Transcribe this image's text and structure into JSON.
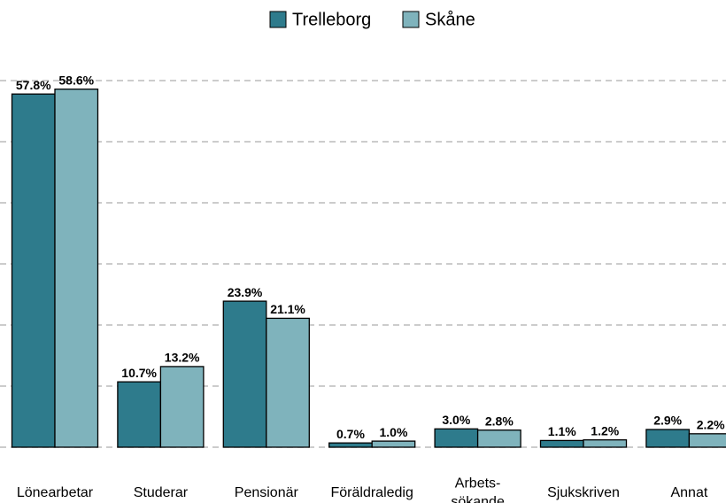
{
  "chart_data": {
    "type": "bar",
    "categories": [
      "Lönearbetar",
      "Studerar",
      "Pensionär",
      "Föräldraledig",
      "Arbets-\nsökande",
      "Sjukskriven",
      "Annat"
    ],
    "series": [
      {
        "name": "Trelleborg",
        "color": "#2e7b8c",
        "values": [
          57.8,
          10.7,
          23.9,
          0.7,
          3.0,
          1.1,
          2.9
        ],
        "value_labels": [
          "57.8%",
          "10.7%",
          "23.9%",
          "0.7%",
          "3.0%",
          "1.1%",
          "2.9%"
        ]
      },
      {
        "name": "Skåne",
        "color": "#7fb3bc",
        "values": [
          58.6,
          13.2,
          21.1,
          1.0,
          2.8,
          1.2,
          2.2
        ],
        "value_labels": [
          "58.6%",
          "13.2%",
          "21.1%",
          "1.0%",
          "2.8%",
          "1.2%",
          "2.2%"
        ]
      }
    ],
    "ylim": [
      0,
      60
    ],
    "yticks": [
      0,
      10,
      20,
      30,
      40,
      50,
      60
    ],
    "grid": true,
    "legend": "top"
  }
}
